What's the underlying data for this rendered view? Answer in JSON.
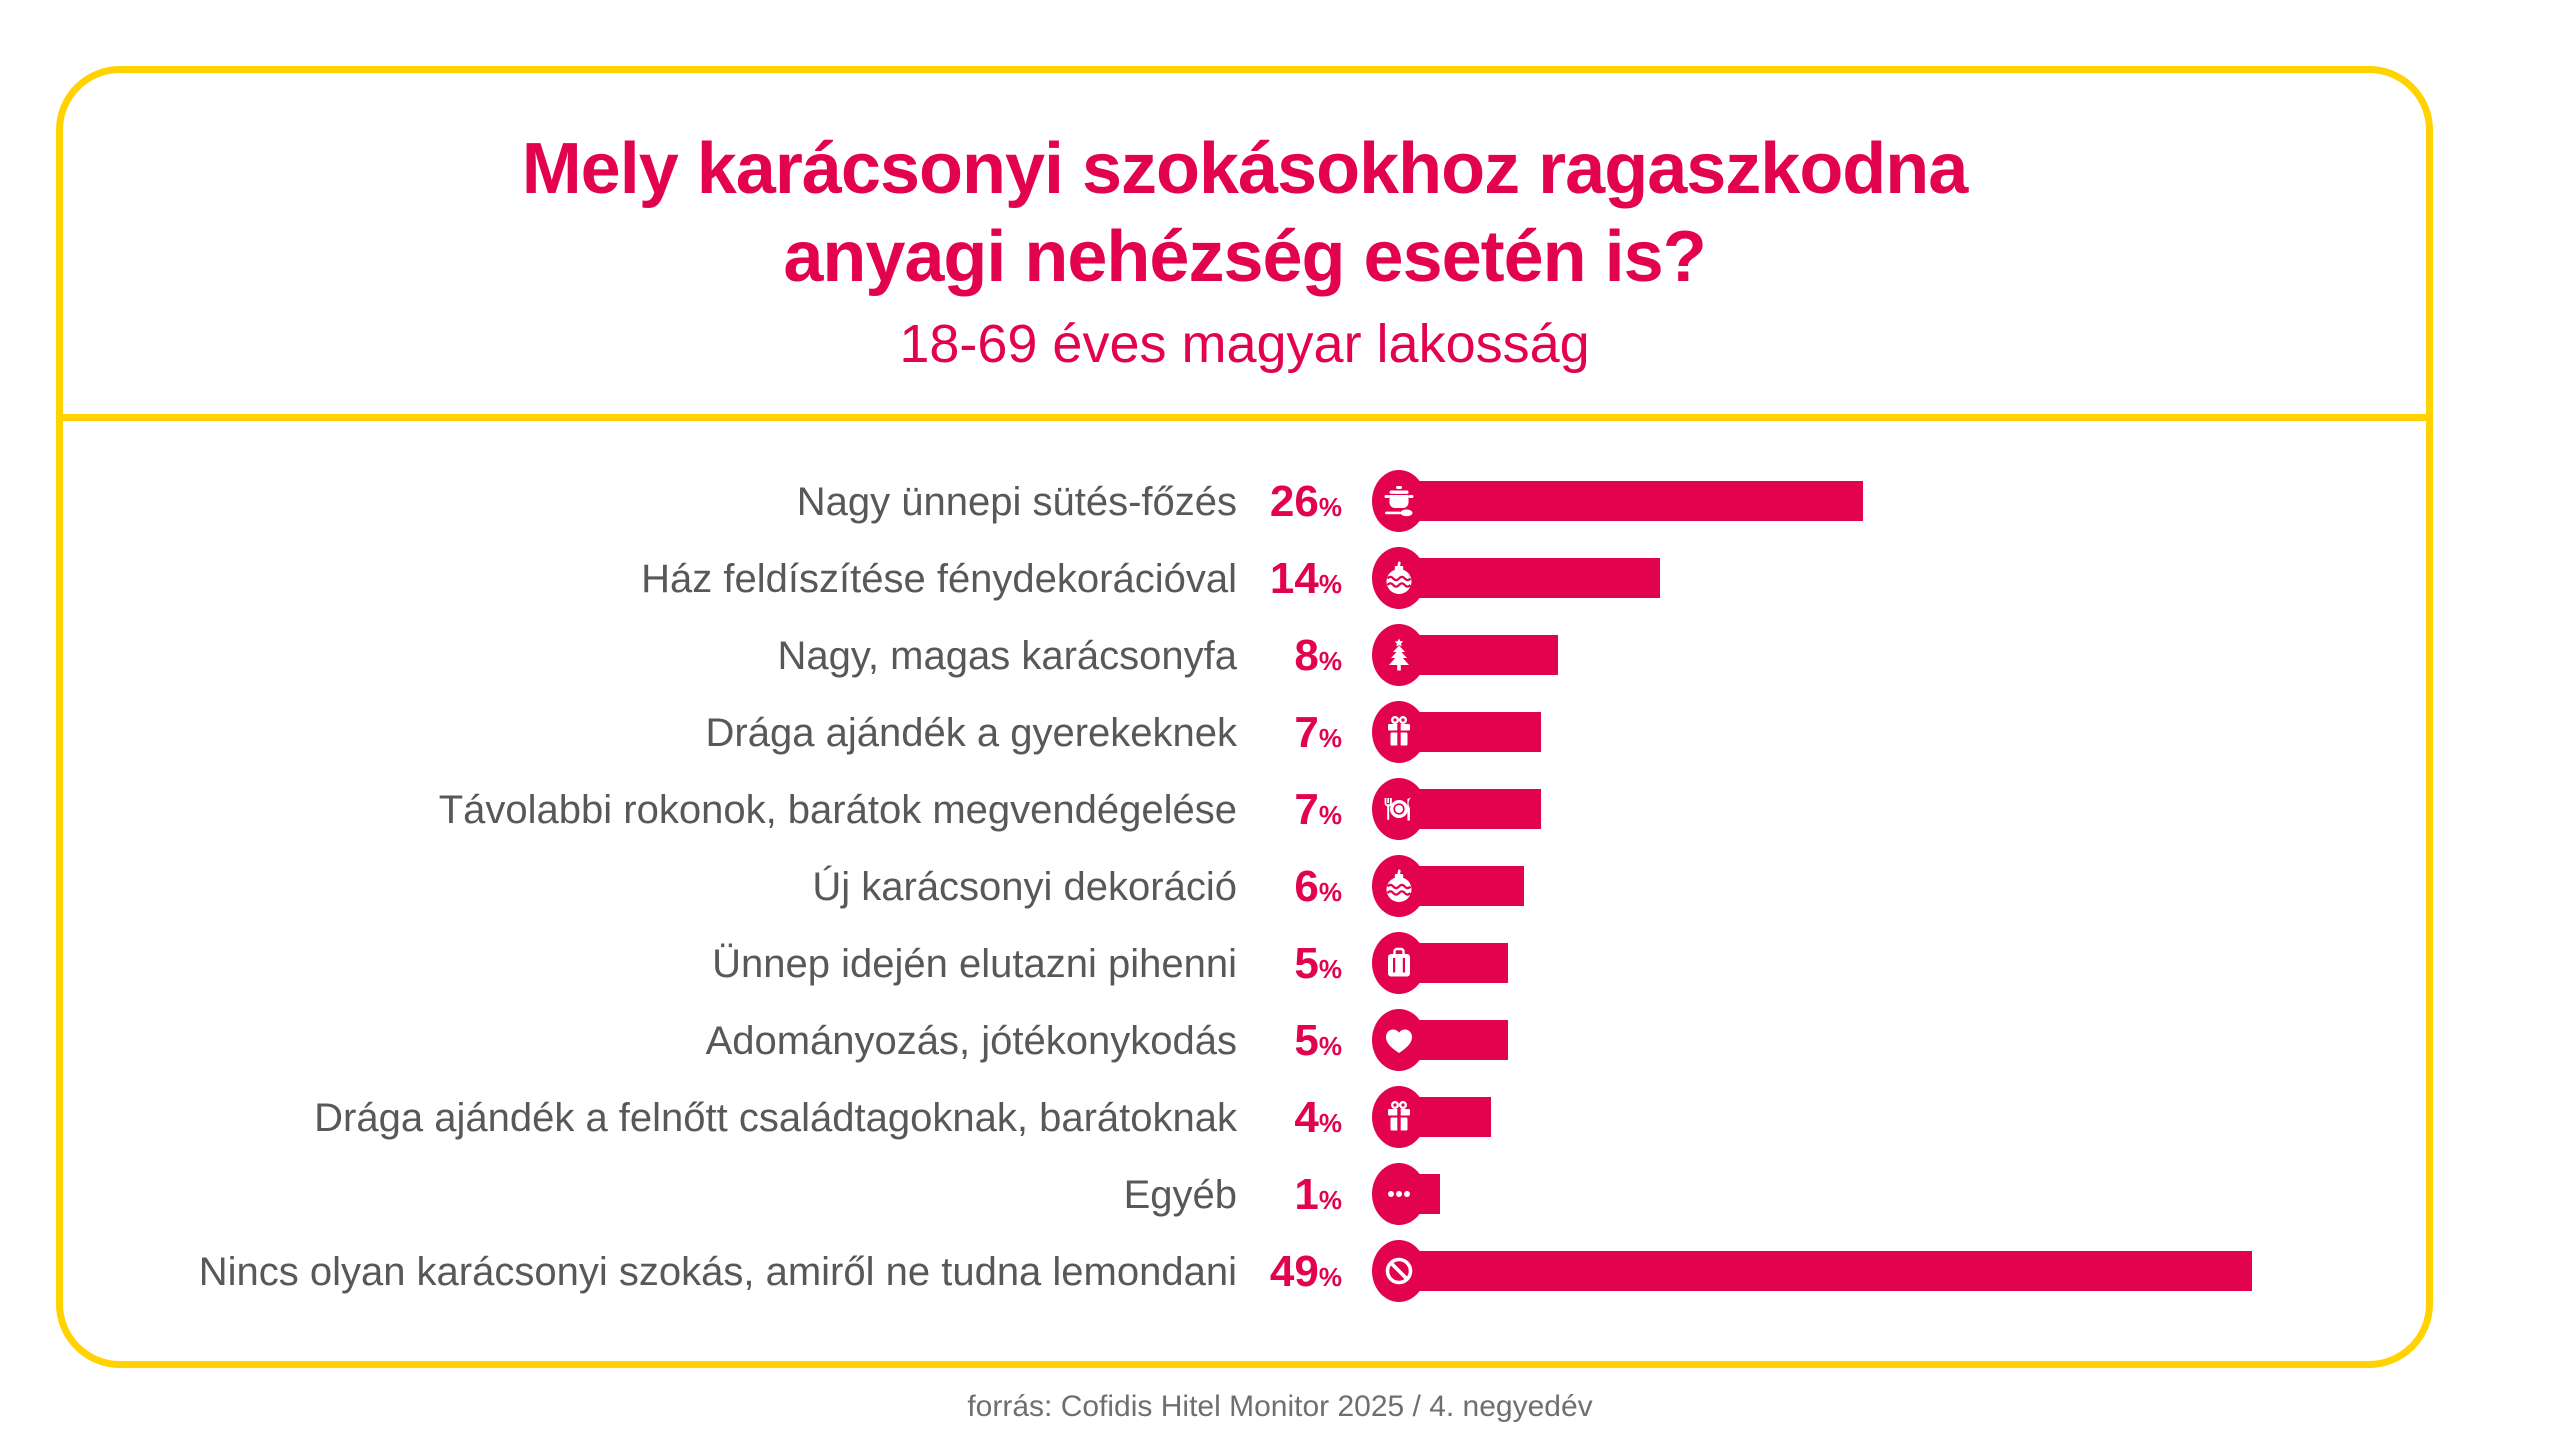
{
  "header": {
    "title_line1": "Mely karácsonyi szokásokhoz ragaszkodna",
    "title_line2": "anyagi nehézség esetén is?",
    "subtitle": "18-69 éves magyar lakosság"
  },
  "footer": {
    "source": "forrás: Cofidis Hitel Monitor 2025 / 4. negyedév"
  },
  "colors": {
    "accent": "#E3024D",
    "frame": "#FFD200",
    "label": "#58585B",
    "source": "#6E6F71",
    "bg": "#FFFFFF",
    "icon_fg": "#FFFFFF"
  },
  "chart_data": {
    "type": "bar",
    "orientation": "horizontal",
    "title": "Mely karácsonyi szokásokhoz ragaszkodna anyagi nehézség esetén is?",
    "subtitle": "18-69 éves magyar lakosság",
    "unit": "%",
    "categories": [
      "Nagy ünnepi sütés-főzés",
      "Ház feldíszítése fénydekorációval",
      "Nagy, magas karácsonyfa",
      "Drága ajándék a gyerekeknek",
      "Távolabbi rokonok, barátok megvendégelése",
      "Új karácsonyi dekoráció",
      "Ünnep idején elutazni pihenni",
      "Adományozás, jótékonykodás",
      "Drága ajándék a felnőtt családtagoknak, barátoknak",
      "Egyéb",
      "Nincs olyan karácsonyi szokás, amiről ne tudna lemondani"
    ],
    "values": [
      26,
      14,
      8,
      7,
      7,
      6,
      5,
      5,
      4,
      1,
      49
    ],
    "icons": [
      "cooking-pot-icon",
      "bauble-icon",
      "christmas-tree-icon",
      "gift-icon",
      "dinner-plate-icon",
      "bauble-icon",
      "suitcase-icon",
      "heart-icon",
      "gift-icon",
      "ellipsis-icon",
      "no-sign-icon"
    ],
    "value_label_position": "left-of-bar",
    "axis_labels": "none",
    "grid": false,
    "legend": "none",
    "xlim": [
      0,
      52
    ]
  }
}
